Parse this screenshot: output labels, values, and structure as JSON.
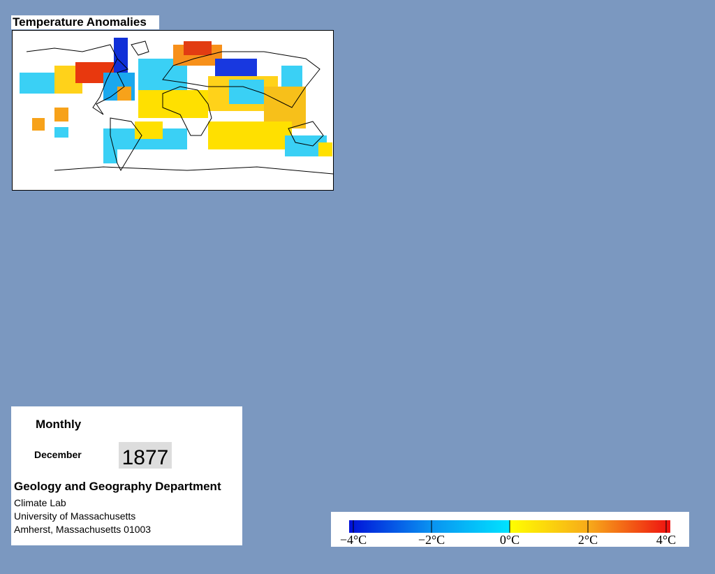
{
  "title": "Temperature Anomalies",
  "info": {
    "period": "Monthly",
    "month": "December",
    "year": "1877",
    "department": "Geology and Geography Department",
    "address": [
      "Climate Lab",
      "University of Massachusetts",
      "Amherst, Massachusetts 01003"
    ]
  },
  "colorbar": {
    "ticks": [
      {
        "value": -4,
        "label": "−4°C"
      },
      {
        "value": -2,
        "label": "−2°C"
      },
      {
        "value": 0,
        "label": "0°C"
      },
      {
        "value": 2,
        "label": "2°C"
      },
      {
        "value": 4,
        "label": "4°C"
      }
    ]
  }
}
